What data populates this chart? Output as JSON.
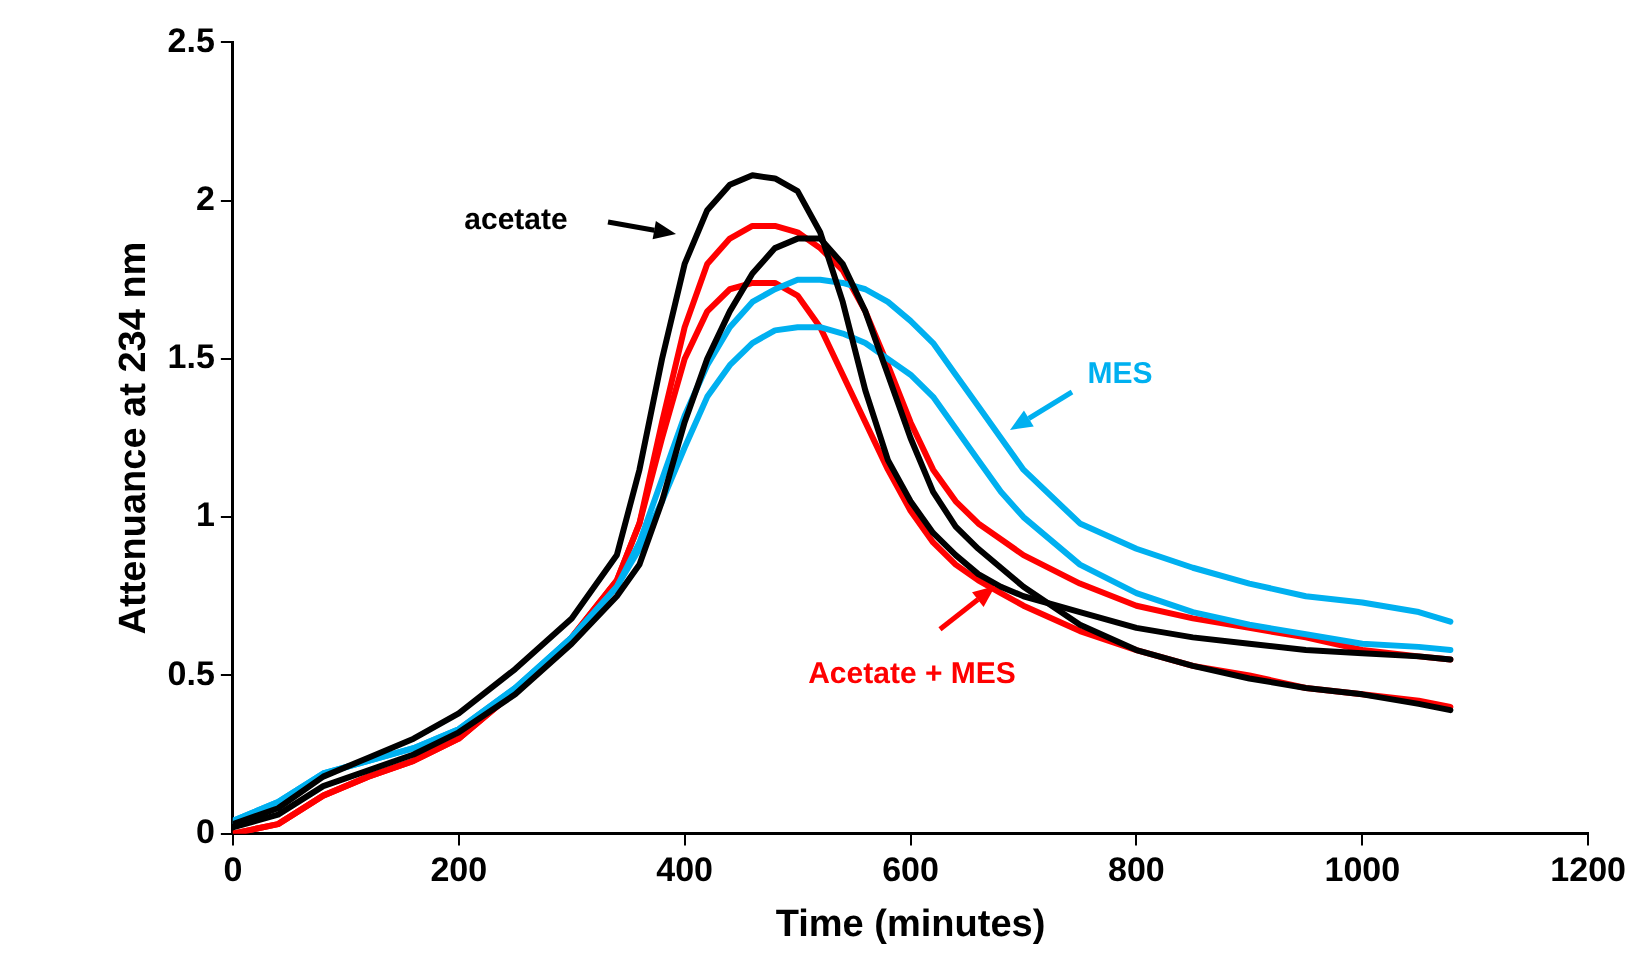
{
  "chart_data": {
    "type": "line",
    "xlabel": "Time (minutes)",
    "ylabel": "Attenuance at 234 nm",
    "x": [
      0,
      40,
      80,
      120,
      160,
      200,
      250,
      300,
      340,
      360,
      380,
      400,
      420,
      440,
      460,
      480,
      500,
      520,
      540,
      560,
      580,
      600,
      620,
      640,
      660,
      680,
      700,
      750,
      800,
      850,
      900,
      950,
      1000,
      1050,
      1078
    ],
    "xlim": [
      0,
      1200
    ],
    "xticks": [
      0,
      200,
      400,
      600,
      800,
      1000,
      1200
    ],
    "ylim": [
      0,
      2.5
    ],
    "yticks": [
      0,
      0.5,
      1,
      1.5,
      2,
      2.5
    ],
    "grid": false,
    "legend": false,
    "marker": "none",
    "line_style": "solid",
    "series": [
      {
        "color": "#000000",
        "values": [
          0.03,
          0.08,
          0.18,
          0.24,
          0.3,
          0.38,
          0.52,
          0.68,
          0.88,
          1.15,
          1.5,
          1.8,
          1.97,
          2.05,
          2.08,
          2.07,
          2.03,
          1.9,
          1.68,
          1.4,
          1.18,
          1.05,
          0.95,
          0.88,
          0.82,
          0.78,
          0.75,
          0.7,
          0.65,
          0.62,
          0.6,
          0.58,
          0.57,
          0.56,
          0.55
        ]
      },
      {
        "color": "#000000",
        "values": [
          0.02,
          0.06,
          0.15,
          0.2,
          0.25,
          0.32,
          0.44,
          0.6,
          0.75,
          0.85,
          1.05,
          1.3,
          1.5,
          1.65,
          1.77,
          1.85,
          1.88,
          1.88,
          1.8,
          1.65,
          1.45,
          1.25,
          1.08,
          0.97,
          0.9,
          0.84,
          0.78,
          0.66,
          0.58,
          0.53,
          0.49,
          0.46,
          0.44,
          0.41,
          0.39
        ]
      },
      {
        "color": "#00b0f0",
        "values": [
          0.04,
          0.1,
          0.19,
          0.23,
          0.27,
          0.33,
          0.46,
          0.62,
          0.78,
          0.92,
          1.12,
          1.32,
          1.48,
          1.6,
          1.68,
          1.72,
          1.75,
          1.75,
          1.74,
          1.72,
          1.68,
          1.62,
          1.55,
          1.45,
          1.35,
          1.25,
          1.15,
          0.98,
          0.9,
          0.84,
          0.79,
          0.75,
          0.73,
          0.7,
          0.67
        ]
      },
      {
        "color": "#00b0f0",
        "values": [
          0.04,
          0.1,
          0.19,
          0.23,
          0.27,
          0.33,
          0.46,
          0.62,
          0.78,
          0.9,
          1.05,
          1.22,
          1.38,
          1.48,
          1.55,
          1.59,
          1.6,
          1.6,
          1.58,
          1.55,
          1.5,
          1.45,
          1.38,
          1.28,
          1.18,
          1.08,
          1.0,
          0.85,
          0.76,
          0.7,
          0.66,
          0.63,
          0.6,
          0.59,
          0.58
        ]
      },
      {
        "color": "#ff0000",
        "values": [
          0.0,
          0.03,
          0.12,
          0.18,
          0.23,
          0.3,
          0.45,
          0.62,
          0.8,
          0.98,
          1.3,
          1.6,
          1.8,
          1.88,
          1.92,
          1.92,
          1.9,
          1.85,
          1.78,
          1.65,
          1.48,
          1.3,
          1.15,
          1.05,
          0.98,
          0.93,
          0.88,
          0.79,
          0.72,
          0.68,
          0.65,
          0.62,
          0.58,
          0.56,
          0.55
        ]
      },
      {
        "color": "#ff0000",
        "values": [
          0.0,
          0.03,
          0.12,
          0.18,
          0.23,
          0.3,
          0.45,
          0.62,
          0.8,
          0.98,
          1.25,
          1.5,
          1.65,
          1.72,
          1.74,
          1.74,
          1.7,
          1.6,
          1.45,
          1.3,
          1.15,
          1.02,
          0.92,
          0.85,
          0.8,
          0.76,
          0.72,
          0.64,
          0.58,
          0.53,
          0.5,
          0.46,
          0.44,
          0.42,
          0.4
        ]
      }
    ],
    "annotations": [
      "acetate",
      "MES",
      {
        "text": "Acetate + MES",
        "x": 675,
        "y": 0.78
      }
    ]
  }
}
